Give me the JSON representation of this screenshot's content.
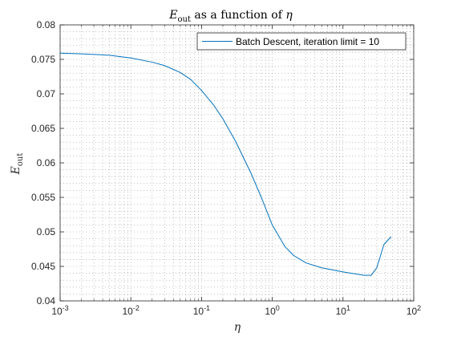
{
  "chart_data": {
    "type": "line",
    "title": {
      "main": "E",
      "sub": "out",
      "rest": " as a function of ",
      "var": "η"
    },
    "xlabel": "η",
    "ylabel": {
      "main": "E",
      "sub": "out"
    },
    "xscale": "log",
    "xlim": [
      0.001,
      100
    ],
    "ylim": [
      0.04,
      0.08
    ],
    "x_ticks": [
      0.001,
      0.01,
      0.1,
      1,
      10,
      100
    ],
    "x_tick_labels": [
      {
        "base": "10",
        "exp": "-3"
      },
      {
        "base": "10",
        "exp": "-2"
      },
      {
        "base": "10",
        "exp": "-1"
      },
      {
        "base": "10",
        "exp": "0"
      },
      {
        "base": "10",
        "exp": "1"
      },
      {
        "base": "10",
        "exp": "2"
      }
    ],
    "y_ticks": [
      0.04,
      0.045,
      0.05,
      0.055,
      0.06,
      0.065,
      0.07,
      0.075,
      0.08
    ],
    "y_tick_labels": [
      "0.04",
      "0.045",
      "0.05",
      "0.055",
      "0.06",
      "0.065",
      "0.07",
      "0.075",
      "0.08"
    ],
    "grid": "minor-dotted",
    "legend_position": "top-right",
    "series": [
      {
        "name": "Batch Descent, iteration limit = 10",
        "color": "#0072BD",
        "x": [
          0.001,
          0.002,
          0.005,
          0.01,
          0.02,
          0.03,
          0.05,
          0.07,
          0.1,
          0.15,
          0.2,
          0.3,
          0.5,
          0.7,
          1,
          1.5,
          2,
          3,
          5,
          10,
          20,
          25,
          30,
          38,
          48
        ],
        "y": [
          0.0759,
          0.0758,
          0.0756,
          0.0752,
          0.0746,
          0.0741,
          0.0731,
          0.0721,
          0.0705,
          0.0683,
          0.0664,
          0.0632,
          0.0585,
          0.055,
          0.051,
          0.0479,
          0.0466,
          0.0455,
          0.0448,
          0.0442,
          0.0437,
          0.0437,
          0.0448,
          0.0482,
          0.0493
        ]
      }
    ]
  }
}
